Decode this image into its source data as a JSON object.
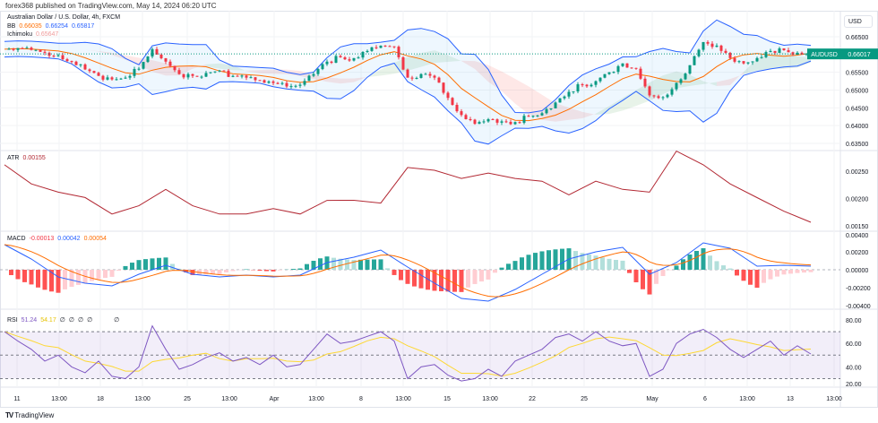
{
  "publisher_line": "forex368 published on TradingView.com, May 14, 2024 06:20 UTC",
  "symbol_title": "Australian Dollar / U.S. Dollar, 4h, FXCM",
  "currency": "USD",
  "price_tag": {
    "symbol": "AUDUSD",
    "price": "0.66017",
    "color": "#089981"
  },
  "legend": {
    "bb": {
      "name": "BB",
      "basis": "0.66035",
      "upper": "0.66254",
      "lower": "0.65817"
    },
    "ichimoku": {
      "name": "Ichimoku",
      "value": "0.65647"
    },
    "atr": {
      "name": "ATR",
      "value": "0.00155"
    },
    "macd": {
      "name": "MACD",
      "hist": "-0.00013",
      "macd": "0.00042",
      "signal": "0.00054"
    },
    "rsi": {
      "name": "RSI",
      "value": "51.24",
      "ma": "54.17",
      "extras": [
        "∅",
        "∅",
        "∅",
        "∅",
        "∅"
      ]
    }
  },
  "colors": {
    "up": "#089981",
    "down": "#f23645",
    "bb": "#2962ff",
    "basis": "#ff6d00",
    "atr": "#b22833",
    "rsi": "#7e57c2",
    "rsi_ma": "#fdd835",
    "hist_up": "#26a69a",
    "hist_up_light": "#b2dfdb",
    "hist_dn": "#ff5252",
    "hist_dn_light": "#ffcdd2"
  },
  "axes": {
    "price": [
      "0.66500",
      "0.65500",
      "0.65000",
      "0.64500",
      "0.64000",
      "0.63500"
    ],
    "atr": [
      "0.00250",
      "0.00200",
      "0.00150"
    ],
    "macd": [
      "0.00400",
      "0.00200",
      "0.00000",
      "-0.00200",
      "-0.00400"
    ],
    "rsi": [
      "80.00",
      "60.00",
      "40.00",
      "20.00"
    ],
    "time": [
      "11",
      "13:00",
      "18",
      "13:00",
      "25",
      "13:00",
      "Apr",
      "13:00",
      "8",
      "13:00",
      "15",
      "13:00",
      "22",
      "25",
      "May",
      "6",
      "13:00",
      "13",
      "13:00",
      "13:00"
    ]
  },
  "chart_data": [
    {
      "type": "candlestick",
      "title": "Australian Dollar / U.S. Dollar, 4h, FXCM",
      "ylim": [
        0.634,
        0.667
      ],
      "close": [
        0.6615,
        0.6618,
        0.6613,
        0.6605,
        0.6598,
        0.658,
        0.6558,
        0.654,
        0.653,
        0.6535,
        0.656,
        0.6615,
        0.658,
        0.6545,
        0.654,
        0.6548,
        0.6555,
        0.654,
        0.6535,
        0.6528,
        0.652,
        0.651,
        0.6515,
        0.6545,
        0.658,
        0.6592,
        0.659,
        0.661,
        0.6625,
        0.6622,
        0.6535,
        0.6545,
        0.6535,
        0.6478,
        0.643,
        0.6405,
        0.6418,
        0.6412,
        0.641,
        0.6425,
        0.6435,
        0.6465,
        0.6495,
        0.6515,
        0.6525,
        0.655,
        0.6575,
        0.656,
        0.6485,
        0.648,
        0.652,
        0.657,
        0.6635,
        0.6625,
        0.659,
        0.6575,
        0.659,
        0.661,
        0.6612,
        0.6605,
        0.6602
      ]
    },
    {
      "type": "line",
      "name": "ATR",
      "ylim": [
        0.0014,
        0.003
      ],
      "values": [
        0.0026,
        0.0023,
        0.0021,
        0.00205,
        0.0017,
        0.0019,
        0.00215,
        0.0019,
        0.0017,
        0.00175,
        0.0018,
        0.00175,
        0.00195,
        0.002,
        0.0019,
        0.0026,
        0.0025,
        0.0024,
        0.00245,
        0.0024,
        0.0023,
        0.0021,
        0.0023,
        0.0022,
        0.0021,
        0.0029,
        0.0026,
        0.0023,
        0.002,
        0.0018,
        0.00155
      ]
    },
    {
      "type": "line",
      "name": "MACD",
      "ylim": [
        -0.0042,
        0.0042
      ],
      "macd": [
        0.0028,
        0.0012,
        -0.0008,
        -0.0015,
        -0.0018,
        -0.0005,
        0.0005,
        -0.0005,
        -0.0008,
        -0.0006,
        -0.0008,
        -0.0006,
        0.0008,
        0.0014,
        0.0022,
        0.0003,
        -0.0015,
        -0.0032,
        -0.0035,
        -0.0022,
        -0.0005,
        0.0012,
        0.002,
        0.0025,
        -0.0005,
        0.0008,
        0.003,
        0.0024,
        0.0004,
        0.0005,
        0.0004
      ]
    },
    {
      "type": "line",
      "name": "RSI",
      "ylim": [
        20,
        80
      ],
      "values": [
        70,
        62,
        55,
        45,
        50,
        40,
        35,
        45,
        32,
        30,
        40,
        75,
        55,
        38,
        42,
        48,
        52,
        45,
        48,
        42,
        50,
        40,
        42,
        55,
        68,
        60,
        62,
        66,
        70,
        62,
        30,
        40,
        42,
        33,
        28,
        30,
        38,
        32,
        45,
        50,
        55,
        65,
        68,
        62,
        70,
        62,
        58,
        60,
        32,
        38,
        60,
        68,
        72,
        65,
        55,
        48,
        55,
        62,
        50,
        58,
        51
      ]
    }
  ]
}
